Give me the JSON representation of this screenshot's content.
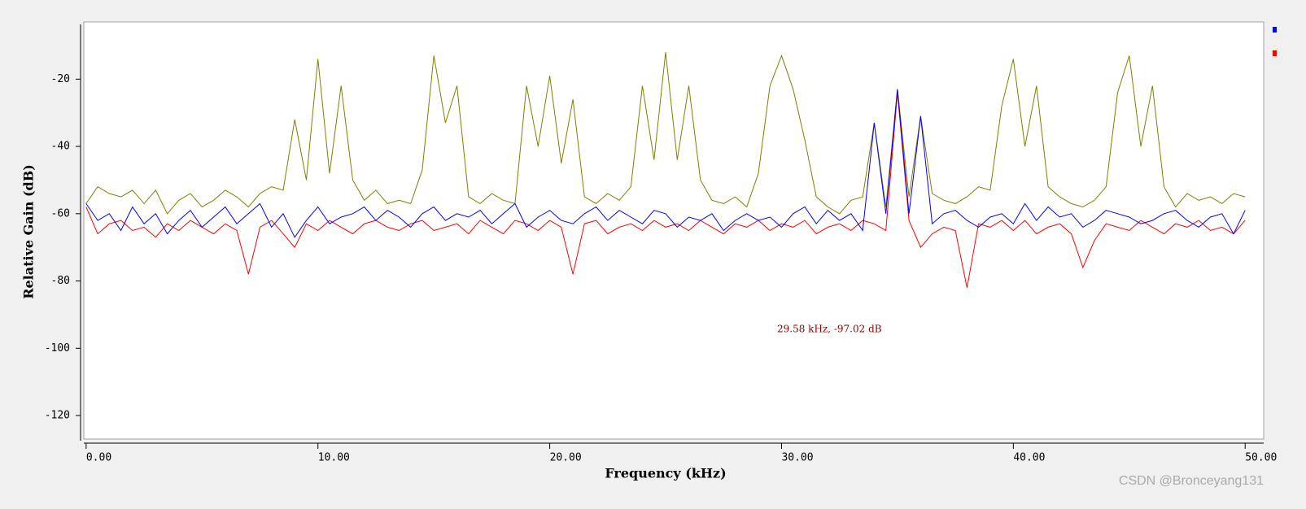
{
  "chart_data": {
    "type": "line",
    "xlabel": "Frequency (kHz)",
    "ylabel": "Relative Gain (dB)",
    "annotation": "29.58 kHz, -97.02 dB",
    "watermark": "CSDN @Bronceyang131",
    "xlim": [
      -0.1,
      50.8
    ],
    "ylim": [
      -127,
      -3
    ],
    "xticks": [
      {
        "value": 0,
        "label": "0.00"
      },
      {
        "value": 10,
        "label": "10.00"
      },
      {
        "value": 20,
        "label": "20.00"
      },
      {
        "value": 30,
        "label": "30.00"
      },
      {
        "value": 40,
        "label": "40.00"
      },
      {
        "value": 50,
        "label": "50.00"
      }
    ],
    "yticks": [
      -120,
      -100,
      -80,
      -60,
      -40,
      -20
    ],
    "x": [
      0,
      0.5,
      1,
      1.5,
      2,
      2.5,
      3,
      3.5,
      4,
      4.5,
      5,
      5.5,
      6,
      6.5,
      7,
      7.5,
      8,
      8.5,
      9,
      9.5,
      10,
      10.5,
      11,
      11.5,
      12,
      12.5,
      13,
      13.5,
      14,
      14.5,
      15,
      15.5,
      16,
      16.5,
      17,
      17.5,
      18,
      18.5,
      19,
      19.5,
      20,
      20.5,
      21,
      21.5,
      22,
      22.5,
      23,
      23.5,
      24,
      24.5,
      25,
      25.5,
      26,
      26.5,
      27,
      27.5,
      28,
      28.5,
      29,
      29.5,
      30,
      30.5,
      31,
      31.5,
      32,
      32.5,
      33,
      33.5,
      34,
      34.5,
      35,
      35.5,
      36,
      36.5,
      37,
      37.5,
      38,
      38.5,
      39,
      39.5,
      40,
      40.5,
      41,
      41.5,
      42,
      42.5,
      43,
      43.5,
      44,
      44.5,
      45,
      45.5,
      46,
      46.5,
      47,
      47.5,
      48,
      48.5,
      49,
      49.5,
      50
    ],
    "series": [
      {
        "color": "#0000ff",
        "values": [
          -57,
          -62,
          -60,
          -65,
          -58,
          -63,
          -60,
          -66,
          -62,
          -59,
          -64,
          -61,
          -58,
          -63,
          -60,
          -57,
          -64,
          -60,
          -67,
          -62,
          -58,
          -63,
          -61,
          -60,
          -58,
          -62,
          -59,
          -61,
          -64,
          -60,
          -58,
          -62,
          -60,
          -61,
          -59,
          -63,
          -60,
          -57,
          -64,
          -61,
          -59,
          -62,
          -63,
          -60,
          -58,
          -62,
          -59,
          -61,
          -63,
          -59,
          -60,
          -64,
          -61,
          -62,
          -60,
          -65,
          -62,
          -60,
          -62,
          -61,
          -64,
          -60,
          -58,
          -63,
          -59,
          -62,
          -60,
          -65,
          -33,
          -60,
          -23,
          -60,
          -31,
          -63,
          -60,
          -59,
          -62,
          -64,
          -61,
          -60,
          -63,
          -57,
          -62,
          -58,
          -61,
          -60,
          -64,
          -62,
          -59,
          -60,
          -61,
          -63,
          -62,
          -60,
          -59,
          -62,
          -64,
          -61,
          -60,
          -66,
          -59
        ]
      },
      {
        "color": "#ff0000",
        "values": [
          -58,
          -66,
          -63,
          -62,
          -65,
          -64,
          -67,
          -63,
          -65,
          -62,
          -64,
          -66,
          -63,
          -65,
          -78,
          -64,
          -62,
          -66,
          -70,
          -63,
          -65,
          -62,
          -64,
          -66,
          -63,
          -62,
          -64,
          -65,
          -63,
          -62,
          -65,
          -64,
          -63,
          -66,
          -62,
          -64,
          -66,
          -62,
          -63,
          -65,
          -62,
          -64,
          -78,
          -63,
          -62,
          -66,
          -64,
          -63,
          -65,
          -62,
          -64,
          -63,
          -65,
          -62,
          -64,
          -66,
          -63,
          -64,
          -62,
          -65,
          -63,
          -64,
          -62,
          -66,
          -64,
          -63,
          -65,
          -62,
          -63,
          -65,
          -24,
          -62,
          -70,
          -66,
          -64,
          -65,
          -82,
          -63,
          -64,
          -62,
          -65,
          -62,
          -66,
          -64,
          -63,
          -66,
          -76,
          -68,
          -63,
          -64,
          -65,
          -62,
          -64,
          -66,
          -63,
          -64,
          -62,
          -65,
          -64,
          -66,
          -62
        ]
      },
      {
        "color": "#808000",
        "values": [
          -57,
          -52,
          -54,
          -55,
          -53,
          -57,
          -53,
          -60,
          -56,
          -54,
          -58,
          -56,
          -53,
          -55,
          -58,
          -54,
          -52,
          -53,
          -32,
          -50,
          -14,
          -48,
          -22,
          -50,
          -56,
          -53,
          -57,
          -56,
          -57,
          -47,
          -13,
          -33,
          -22,
          -55,
          -57,
          -54,
          -56,
          -57,
          -22,
          -40,
          -19,
          -45,
          -26,
          -55,
          -57,
          -54,
          -56,
          -52,
          -22,
          -44,
          -12,
          -44,
          -22,
          -50,
          -56,
          -57,
          -55,
          -58,
          -48,
          -22,
          -13,
          -23,
          -38,
          -55,
          -58,
          -60,
          -56,
          -55,
          -33,
          -58,
          -23,
          -55,
          -31,
          -54,
          -56,
          -57,
          -55,
          -52,
          -53,
          -28,
          -14,
          -40,
          -22,
          -52,
          -55,
          -57,
          -58,
          -56,
          -52,
          -24,
          -13,
          -40,
          -22,
          -52,
          -58,
          -54,
          -56,
          -55,
          -57,
          -54,
          -55
        ]
      }
    ]
  }
}
